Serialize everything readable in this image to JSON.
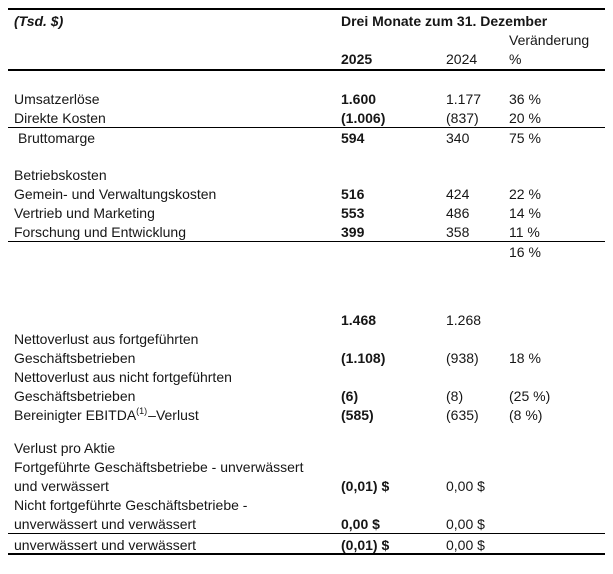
{
  "header": {
    "unit_label": "(Tsd. $)",
    "period_title": "Drei Monate zum 31. Dezember",
    "change_label": "Veränderung",
    "col_2025": "2025",
    "col_2024": "2024",
    "percent_label": "%"
  },
  "table": {
    "columns": [
      "label",
      "2025",
      "2024",
      "change_percent"
    ],
    "rows": [
      {},
      {
        "label": "Umsatzerlöse",
        "v2025": "1.600",
        "v2024": "1.177",
        "change": "36 %"
      },
      {
        "label": "Direkte Kosten",
        "v2025": "(1.006)",
        "v2024": "(837)",
        "change": "20 %",
        "rule_after": true
      },
      {
        "label": "Bruttomarge",
        "v2025": "594",
        "v2024": "340",
        "change": "75 %",
        "indent": true
      },
      {},
      {
        "label": "Betriebskosten"
      },
      {
        "label": "Gemein- und Verwaltungskosten",
        "v2025": "516",
        "v2024": "424",
        "change": "22 %"
      },
      {
        "label": "Vertrieb und Marketing",
        "v2025": "553",
        "v2024": "486",
        "change": "14 %"
      },
      {
        "label": "Forschung und Entwicklung",
        "v2025": "399",
        "v2024": "358",
        "change": "11 %",
        "rule_after": true
      },
      {
        "change": "16 %"
      },
      {
        "gap": "tall"
      },
      {
        "v2025": "1.468",
        "v2024": "1.268"
      },
      {
        "label": "Nettoverlust aus fortgeführten"
      },
      {
        "label": "Geschäftsbetrieben",
        "v2025": "(1.108)",
        "v2024": "(938)",
        "change": "18 %"
      },
      {
        "label": "Nettoverlust aus nicht fortgeführten"
      },
      {
        "label": "Geschäftsbetrieben",
        "v2025": "(6)",
        "v2024": "(8)",
        "change": "(25 %)"
      },
      {
        "label": "Bereinigter EBITDA",
        "label_sup": "(1)",
        "label_post": "–Verlust",
        "v2025": "(585)",
        "v2024": "(635)",
        "change": "(8 %)"
      },
      {
        "gap": "small"
      },
      {
        "label": "Verlust pro Aktie"
      },
      {
        "label": "Fortgeführte Geschäftsbetriebe - unverwässert"
      },
      {
        "label": "und verwässert",
        "v2025": "(0,01) $",
        "v2024": "0,00 $"
      },
      {
        "label": "Nicht fortgeführte Geschäftsbetriebe -"
      },
      {
        "label": "unverwässert und verwässert",
        "v2025": "0,00 $",
        "v2024": "0,00 $",
        "rule_after": true
      },
      {
        "label": "unverwässert und verwässert",
        "v2025": "(0,01) $",
        "v2024": "0,00 $",
        "last": true
      }
    ]
  },
  "colors": {
    "text": "#161616",
    "rule": "#000000",
    "background": "#ffffff"
  }
}
